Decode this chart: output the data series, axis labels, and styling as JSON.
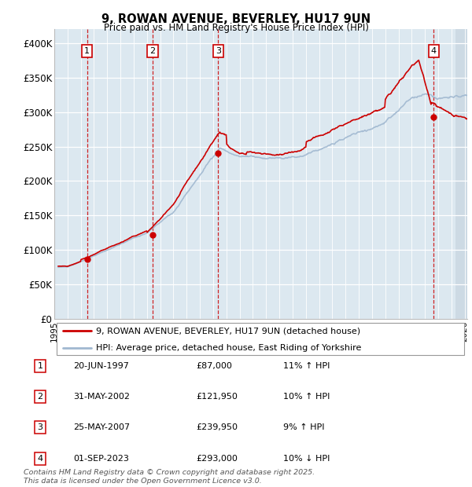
{
  "title": "9, ROWAN AVENUE, BEVERLEY, HU17 9UN",
  "subtitle": "Price paid vs. HM Land Registry's House Price Index (HPI)",
  "ylabel_ticks": [
    "£0",
    "£50K",
    "£100K",
    "£150K",
    "£200K",
    "£250K",
    "£300K",
    "£350K",
    "£400K"
  ],
  "ytick_values": [
    0,
    50000,
    100000,
    150000,
    200000,
    250000,
    300000,
    350000,
    400000
  ],
  "ylim": [
    0,
    420000
  ],
  "xlim_start": 1995.3,
  "xlim_end": 2026.2,
  "sale_dates": [
    1997.47,
    2002.41,
    2007.39,
    2023.67
  ],
  "sale_prices": [
    87000,
    121950,
    239950,
    293000
  ],
  "sale_labels": [
    "1",
    "2",
    "3",
    "4"
  ],
  "legend_line1": "9, ROWAN AVENUE, BEVERLEY, HU17 9UN (detached house)",
  "legend_line2": "HPI: Average price, detached house, East Riding of Yorkshire",
  "table_data": [
    [
      "1",
      "20-JUN-1997",
      "£87,000",
      "11% ↑ HPI"
    ],
    [
      "2",
      "31-MAY-2002",
      "£121,950",
      "10% ↑ HPI"
    ],
    [
      "3",
      "25-MAY-2007",
      "£239,950",
      "9% ↑ HPI"
    ],
    [
      "4",
      "01-SEP-2023",
      "£293,000",
      "10% ↓ HPI"
    ]
  ],
  "footnote": "Contains HM Land Registry data © Crown copyright and database right 2025.\nThis data is licensed under the Open Government Licence v3.0.",
  "hpi_color": "#a0b8d0",
  "sale_color": "#cc0000",
  "vline_color": "#cc0000",
  "box_color": "#cc0000",
  "bg_color": "#dce8f0",
  "future_color": "#c8d5e0",
  "grid_color": "#ffffff"
}
